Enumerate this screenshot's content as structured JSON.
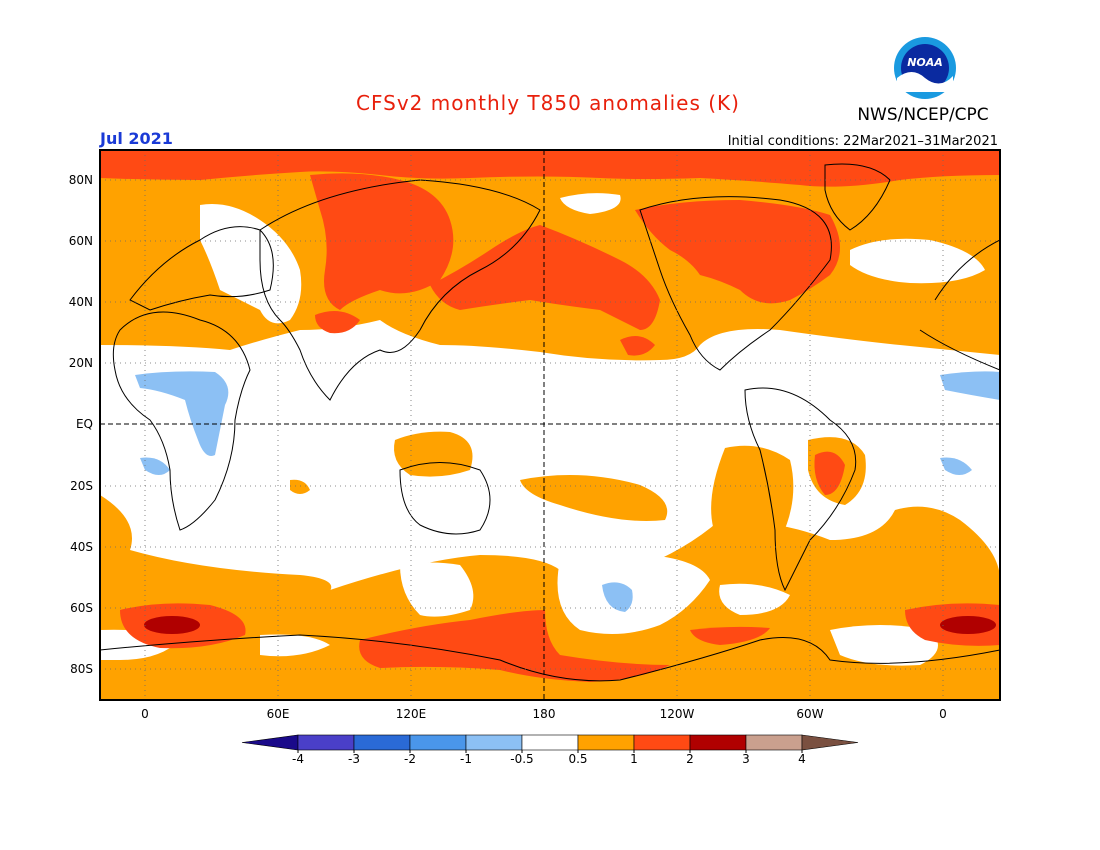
{
  "title": "CFSv2 monthly T850 anomalies (K)",
  "agency": "NWS/NCEP/CPC",
  "logo_text": "NOAA",
  "valid_month": "Jul 2021",
  "initial_conditions": "Initial conditions: 22Mar2021–31Mar2021",
  "axes": {
    "lat_labels": [
      "80N",
      "60N",
      "40N",
      "20N",
      "EQ",
      "20S",
      "40S",
      "60S",
      "80S"
    ],
    "lon_labels": [
      "0",
      "60E",
      "120E",
      "180",
      "120W",
      "60W",
      "0"
    ]
  },
  "colorbar": {
    "levels": [
      "-4",
      "-3",
      "-2",
      "-1",
      "-0.5",
      "0.5",
      "1",
      "2",
      "3",
      "4"
    ],
    "colors": [
      "#1a0a8a",
      "#4a3fc8",
      "#2a6ad6",
      "#4a96ea",
      "#8cc0f4",
      "#ffffff",
      "#ffa200",
      "#ff4a14",
      "#b00000",
      "#caa08e",
      "#7a5040"
    ]
  },
  "palette": {
    "title_color": "#e8200c",
    "month_color": "#1a3ad6",
    "cool1": "#8cc0f4",
    "warm1": "#ffa200",
    "warm2": "#ff4a14",
    "warm3": "#b00000"
  }
}
